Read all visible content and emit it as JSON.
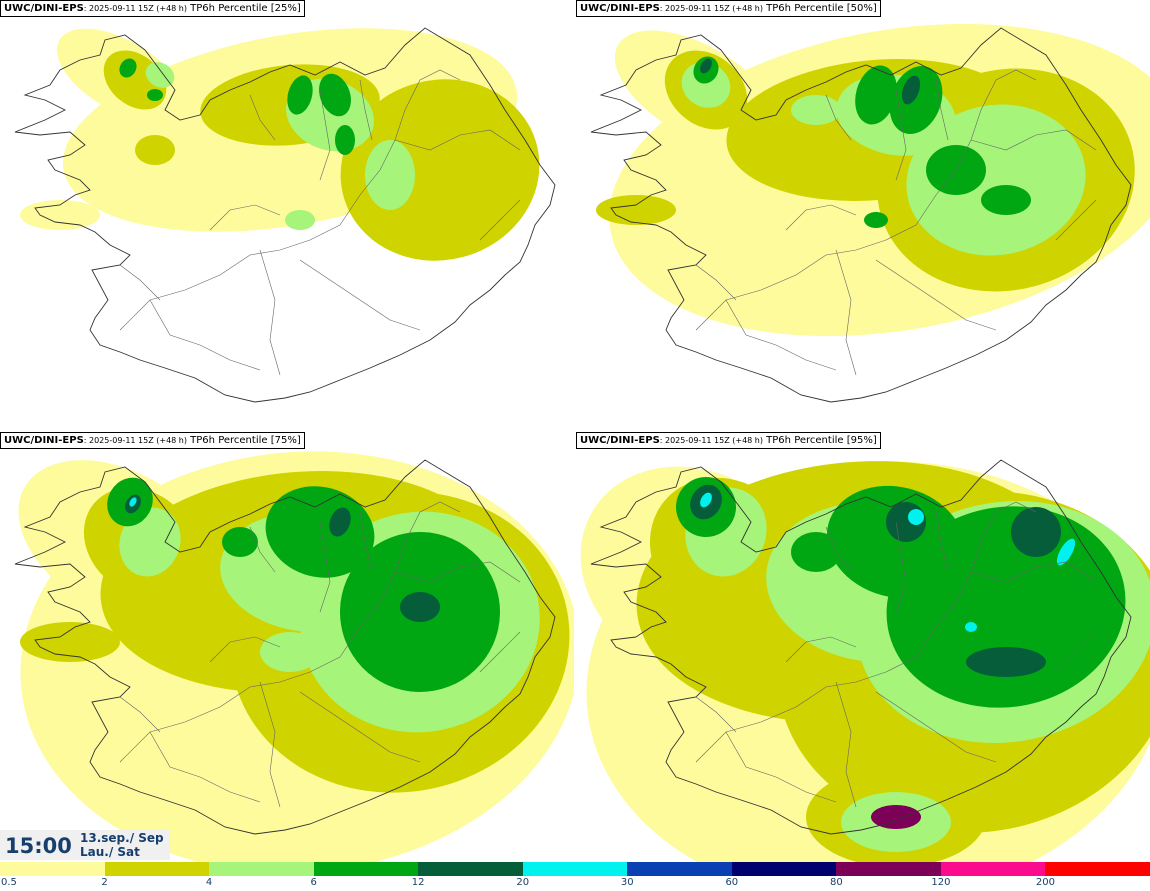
{
  "panels": [
    {
      "model": "UWC/DINI-EPS",
      "run": ": 2025-09-11 15Z (+48 h)",
      "field": "TP6h Percentile [25%]",
      "level": 0
    },
    {
      "model": "UWC/DINI-EPS",
      "run": ": 2025-09-11 15Z (+48 h)",
      "field": "TP6h Percentile [50%]",
      "level": 1
    },
    {
      "model": "UWC/DINI-EPS",
      "run": ": 2025-09-11 15Z (+48 h)",
      "field": "TP6h Percentile [75%]",
      "level": 2
    },
    {
      "model": "UWC/DINI-EPS",
      "run": ": 2025-09-11 15Z (+48 h)",
      "field": "TP6h Percentile [95%]",
      "level": 3
    }
  ],
  "valid_time": {
    "time": "15:00",
    "date": "13.sep./ Sep",
    "day": "Lau./ Sat"
  },
  "legend": {
    "labels": [
      "0.5",
      "2",
      "4",
      "6",
      "12",
      "20",
      "30",
      "60",
      "80",
      "120",
      "200"
    ],
    "colors": [
      "#fdfb9c",
      "#cfd300",
      "#a6f57a",
      "#00a713",
      "#055d3a",
      "#00f2ee",
      "#0b3fb4",
      "#00006e",
      "#7c0057",
      "#fb0c8f",
      "#fe0101"
    ]
  }
}
